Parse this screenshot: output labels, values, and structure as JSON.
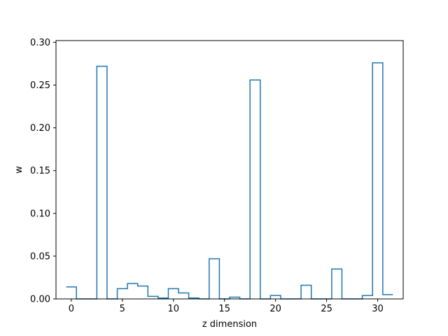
{
  "chart_data": {
    "type": "step",
    "title": "",
    "xlabel": "z dimension",
    "ylabel": "w",
    "xlim": [
      -1.5,
      32.5
    ],
    "ylim": [
      0.0,
      0.302
    ],
    "xticks": [
      0,
      5,
      10,
      15,
      20,
      25,
      30
    ],
    "xtick_labels": [
      "0",
      "5",
      "10",
      "15",
      "20",
      "25",
      "30"
    ],
    "yticks": [
      0.0,
      0.05,
      0.1,
      0.15,
      0.2,
      0.25,
      0.3
    ],
    "ytick_labels": [
      "0.00",
      "0.05",
      "0.10",
      "0.15",
      "0.20",
      "0.25",
      "0.30"
    ],
    "grid": false,
    "color": "#1f77b4",
    "x": [
      0,
      1,
      2,
      3,
      4,
      5,
      6,
      7,
      8,
      9,
      10,
      11,
      12,
      13,
      14,
      15,
      16,
      17,
      18,
      19,
      20,
      21,
      22,
      23,
      24,
      25,
      26,
      27,
      28,
      29,
      30,
      31
    ],
    "values": [
      0.014,
      0.0,
      0.0,
      0.272,
      0.0,
      0.012,
      0.018,
      0.015,
      0.003,
      0.001,
      0.012,
      0.007,
      0.001,
      0.0,
      0.047,
      0.0,
      0.002,
      0.0,
      0.256,
      0.0,
      0.004,
      0.0,
      0.0,
      0.016,
      0.0,
      0.0,
      0.035,
      0.0,
      0.0,
      0.004,
      0.276,
      0.005
    ]
  }
}
